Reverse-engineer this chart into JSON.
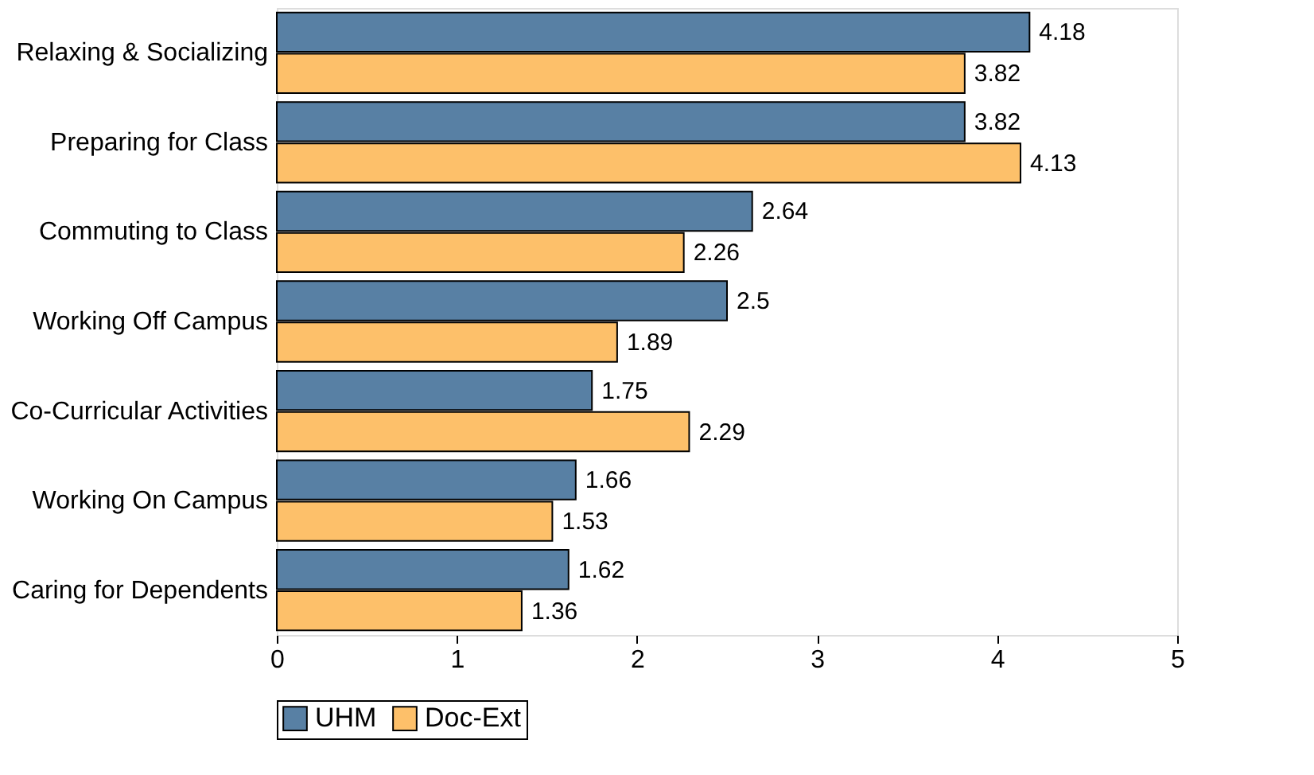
{
  "chart_data": {
    "type": "bar",
    "orientation": "horizontal",
    "categories": [
      "Relaxing & Socializing",
      "Preparing for Class",
      "Commuting to Class",
      "Working Off Campus",
      "Co-Curricular Activities",
      "Working On Campus",
      "Caring for Dependents"
    ],
    "series": [
      {
        "name": "UHM",
        "color": "#5880a4",
        "values": [
          4.18,
          3.82,
          2.64,
          2.5,
          1.75,
          1.66,
          1.62
        ]
      },
      {
        "name": "Doc-Ext",
        "color": "#fdc06a",
        "values": [
          3.82,
          4.13,
          2.26,
          1.89,
          2.29,
          1.53,
          1.36
        ]
      }
    ],
    "xlim": [
      0,
      5
    ],
    "xticks": [
      0,
      1,
      2,
      3,
      4,
      5
    ],
    "grid": false,
    "legend": "bottom",
    "data_labels": true
  }
}
